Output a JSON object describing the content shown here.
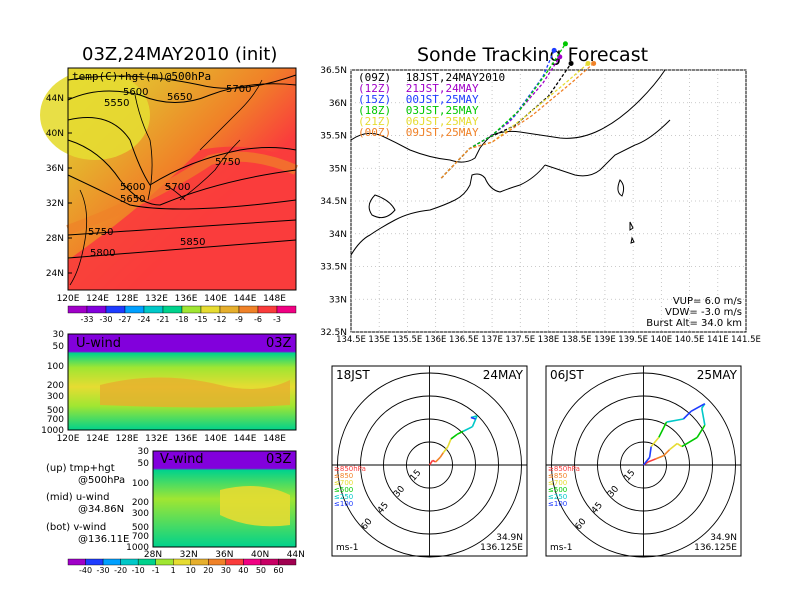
{
  "left_title": "03Z,24MAY2010 (init)",
  "right_title": "Sonde Tracking Forecast",
  "map500": {
    "label": "temp(C)+hgt(m)@500hPa",
    "lat_ticks": [
      "44N",
      "40N",
      "36N",
      "32N",
      "28N",
      "24N"
    ],
    "lon_ticks": [
      "120E",
      "124E",
      "128E",
      "132E",
      "136E",
      "140E",
      "144E",
      "148E"
    ],
    "contour_labels": [
      "5550",
      "5600",
      "5650",
      "5700",
      "5600",
      "5650",
      "5700",
      "5750",
      "5750",
      "5800",
      "5850"
    ],
    "colorbar_labels": [
      "-33",
      "-30",
      "-27",
      "-24",
      "-21",
      "-18",
      "-15",
      "-12",
      "-9",
      "-6",
      "-3"
    ],
    "colorbar_colors": [
      "#a000c8",
      "#8200dc",
      "#1e3cff",
      "#00a0ff",
      "#00c8c8",
      "#00d28c",
      "#a0e632",
      "#e6dc32",
      "#e6af2d",
      "#f08228",
      "#fa3c3c",
      "#f00082"
    ]
  },
  "uwind": {
    "label": "U-wind",
    "time": "03Z",
    "y_ticks": [
      "30",
      "50",
      "100",
      "200",
      "300",
      "500",
      "700",
      "1000"
    ],
    "lon_ticks": [
      "120E",
      "124E",
      "128E",
      "132E",
      "136E",
      "140E",
      "144E",
      "148E"
    ]
  },
  "vwind": {
    "label": "V-wind",
    "time": "03Z",
    "y_ticks": [
      "30",
      "50",
      "100",
      "200",
      "300",
      "500",
      "700",
      "1000"
    ],
    "lat_ticks": [
      "28N",
      "32N",
      "36N",
      "40N",
      "44N"
    ],
    "colorbar_labels": [
      "-40",
      "-30",
      "-20",
      "-10",
      "-1",
      "1",
      "10",
      "20",
      "30",
      "40",
      "50",
      "60"
    ],
    "colorbar_colors": [
      "#a000c8",
      "#1e3cff",
      "#00a0ff",
      "#00c8c8",
      "#00d28c",
      "#a0e632",
      "#e6dc32",
      "#e6af2d",
      "#f08228",
      "#fa3c3c",
      "#f00082",
      "#c80064"
    ]
  },
  "legend_left": [
    {
      "a": "(up) tmp+hgt",
      "b": "@500hPa"
    },
    {
      "a": "(mid) u-wind",
      "b": "@34.86N"
    },
    {
      "a": "(bot) v-wind",
      "b": "@136.11E"
    }
  ],
  "track_map": {
    "lat_ticks": [
      "36.5N",
      "36N",
      "35.5N",
      "35N",
      "34.5N",
      "34N",
      "33.5N",
      "33N",
      "32.5N"
    ],
    "lon_ticks": [
      "134.5E",
      "135E",
      "135.5E",
      "136E",
      "136.5E",
      "137E",
      "137.5E",
      "138E",
      "138.5E",
      "139E",
      "139.5E",
      "140E",
      "140.5E",
      "141E",
      "141.5E"
    ],
    "launches": [
      {
        "tag": "(09Z)",
        "time": "18JST,24MAY2010",
        "color": "#000000"
      },
      {
        "tag": "(12Z)",
        "time": "21JST,24MAY",
        "color": "#a000c8"
      },
      {
        "tag": "(15Z)",
        "time": "00JST,25MAY",
        "color": "#1e3cff"
      },
      {
        "tag": "(18Z)",
        "time": "03JST,25MAY",
        "color": "#00c800"
      },
      {
        "tag": "(21Z)",
        "time": "06JST,25MAY",
        "color": "#e6dc32"
      },
      {
        "tag": "(00Z)",
        "time": "09JST,25MAY",
        "color": "#f08228"
      }
    ],
    "params": [
      "VUP= 6.0 m/s",
      "VDW= -3.0 m/s",
      "Burst Alt= 34.0 km"
    ]
  },
  "polar1": {
    "time": "18JST",
    "date": "24MAY",
    "ring_labels": [
      "15",
      "30",
      "45",
      "60"
    ],
    "unit": "ms-1",
    "lat": "34.9N",
    "lon": "136.125E",
    "levels": [
      {
        "label": "≥850hPa",
        "color": "#fa3c3c"
      },
      {
        "label": "≤850",
        "color": "#f08228"
      },
      {
        "label": "≤700",
        "color": "#e6dc32"
      },
      {
        "label": "≤500",
        "color": "#00c800"
      },
      {
        "label": "≤250",
        "color": "#00c8c8"
      },
      {
        "label": "≤100",
        "color": "#1e3cff"
      }
    ]
  },
  "polar2": {
    "time": "06JST",
    "date": "25MAY",
    "ring_labels": [
      "15",
      "30",
      "45",
      "60"
    ],
    "unit": "ms-1",
    "lat": "34.9N",
    "lon": "136.125E",
    "levels": [
      {
        "label": "≥850hPa",
        "color": "#fa3c3c"
      },
      {
        "label": "≤850",
        "color": "#f08228"
      },
      {
        "label": "≤700",
        "color": "#e6dc32"
      },
      {
        "label": "≤500",
        "color": "#00c800"
      },
      {
        "label": "≤250",
        "color": "#00c8c8"
      },
      {
        "label": "≤100",
        "color": "#1e3cff"
      }
    ]
  }
}
